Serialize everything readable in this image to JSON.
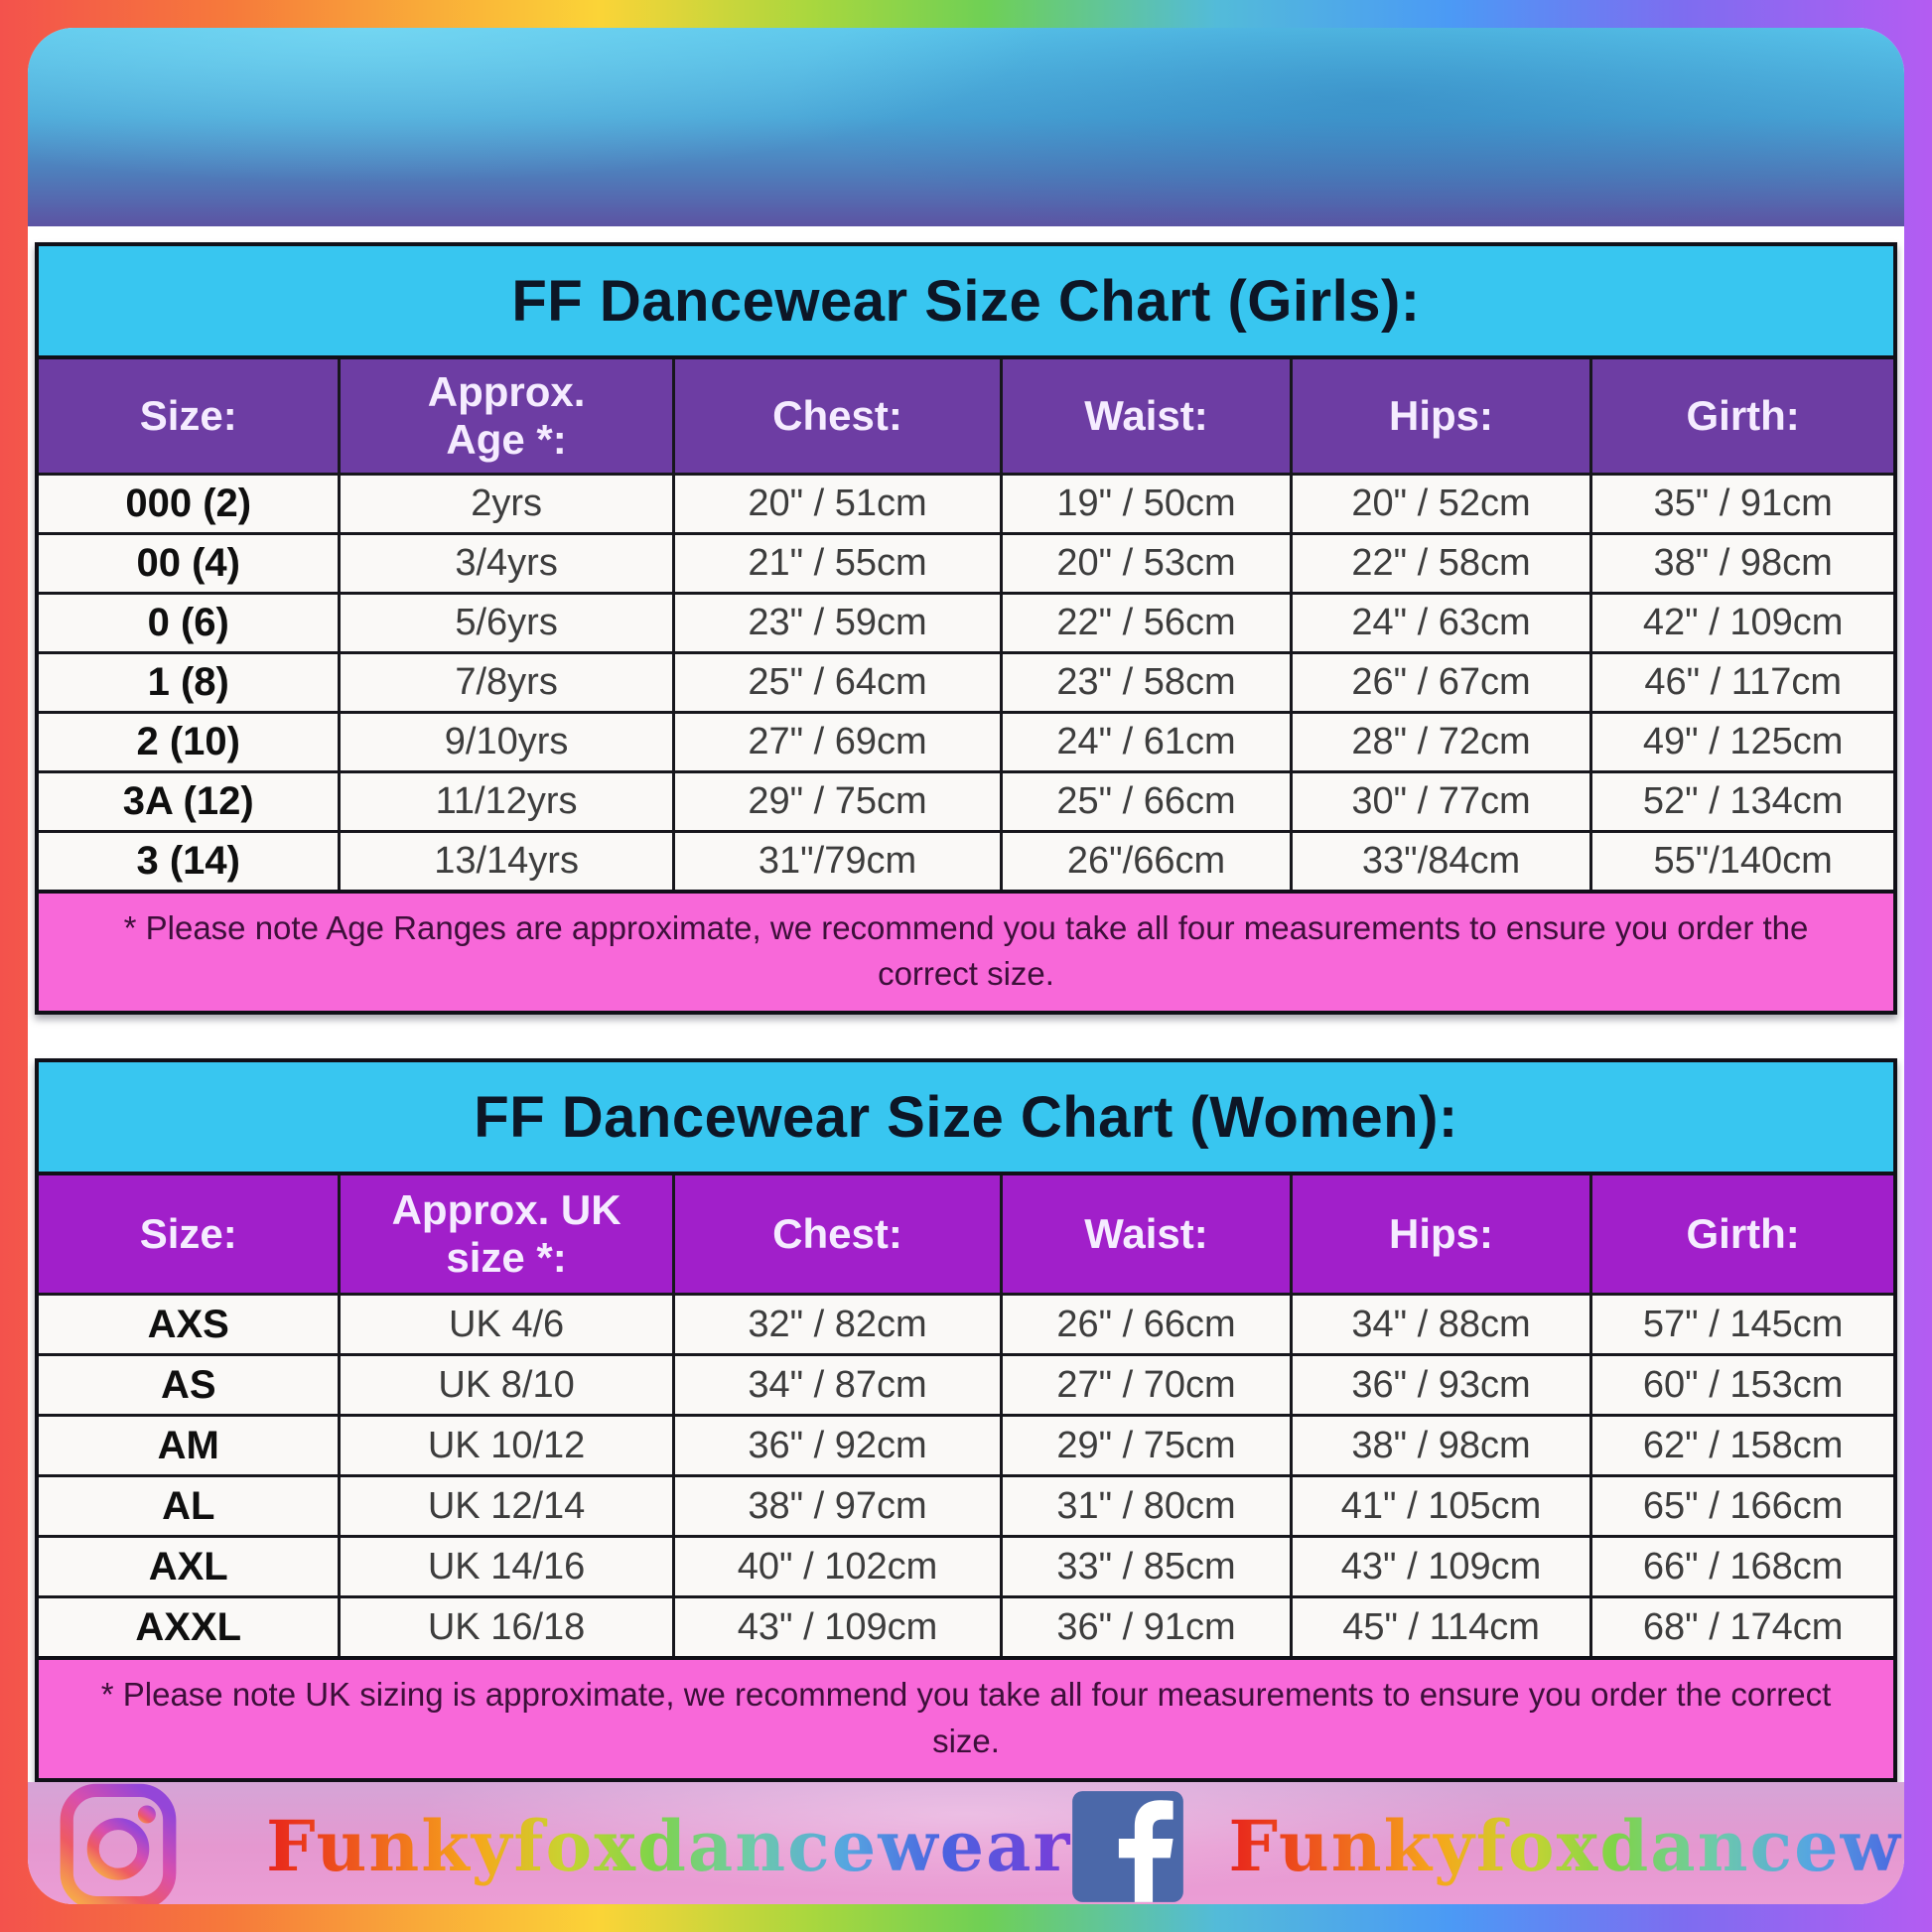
{
  "girls_table": {
    "title": "FF Dancewear Size Chart (Girls):",
    "columns": [
      "Size:",
      "Approx.\nAge *:",
      "Chest:",
      "Waist:",
      "Hips:",
      "Girth:"
    ],
    "rows": [
      [
        "000 (2)",
        "2yrs",
        "20\" / 51cm",
        "19\" / 50cm",
        "20\" / 52cm",
        "35\" / 91cm"
      ],
      [
        "00 (4)",
        "3/4yrs",
        "21\" / 55cm",
        "20\" / 53cm",
        "22\" / 58cm",
        "38\" / 98cm"
      ],
      [
        "0 (6)",
        "5/6yrs",
        "23\" / 59cm",
        "22\" / 56cm",
        "24\" / 63cm",
        "42\" / 109cm"
      ],
      [
        "1 (8)",
        "7/8yrs",
        "25\" / 64cm",
        "23\" / 58cm",
        "26\" / 67cm",
        "46\" / 117cm"
      ],
      [
        "2 (10)",
        "9/10yrs",
        "27\" / 69cm",
        "24\" / 61cm",
        "28\" / 72cm",
        "49\" / 125cm"
      ],
      [
        "3A (12)",
        "11/12yrs",
        "29\" / 75cm",
        "25\" / 66cm",
        "30\" / 77cm",
        "52\" / 134cm"
      ],
      [
        "3 (14)",
        "13/14yrs",
        "31\"/79cm",
        "26\"/66cm",
        "33\"/84cm",
        "55\"/140cm"
      ]
    ],
    "footnote": "* Please note Age Ranges are approximate, we recommend you take all four measurements to ensure you order the correct size."
  },
  "women_table": {
    "title": "FF Dancewear Size Chart (Women):",
    "columns": [
      "Size:",
      "Approx. UK\nsize *:",
      "Chest:",
      "Waist:",
      "Hips:",
      "Girth:"
    ],
    "rows": [
      [
        "AXS",
        "UK 4/6",
        "32\" / 82cm",
        "26\" / 66cm",
        "34\" / 88cm",
        "57\" / 145cm"
      ],
      [
        "AS",
        "UK 8/10",
        "34\" / 87cm",
        "27\" / 70cm",
        "36\" / 93cm",
        "60\" / 153cm"
      ],
      [
        "AM",
        "UK 10/12",
        "36\" / 92cm",
        "29\" / 75cm",
        "38\" / 98cm",
        "62\" / 158cm"
      ],
      [
        "AL",
        "UK 12/14",
        "38\" / 97cm",
        "31\" / 80cm",
        "41\" / 105cm",
        "65\" / 166cm"
      ],
      [
        "AXL",
        "UK 14/16",
        "40\" / 102cm",
        "33\" / 85cm",
        "43\" / 109cm",
        "66\" / 168cm"
      ],
      [
        "AXXL",
        "UK 16/18",
        "43\" / 109cm",
        "36\" / 91cm",
        "45\" / 114cm",
        "68\" / 174cm"
      ]
    ],
    "footnote": "* Please note UK sizing is approximate, we recommend you take all four measurements to ensure you order the correct size."
  },
  "footer": {
    "instagram_icon": "instagram-icon",
    "facebook_icon": "facebook-icon",
    "instagram_handle": "Funkyfoxdancewear",
    "facebook_handle": "Funkyfoxdancewear"
  },
  "colors": {
    "title_bar_cyan": "#38c6f0",
    "girls_header_purple": "#6d3da3",
    "women_header_purple": "#a11fca",
    "footnote_pink": "#f868d9",
    "facebook_blue": "#4b68a9",
    "rainbow_border": [
      "#f3524c",
      "#fbd437",
      "#6fd055",
      "#4b9af5",
      "#b45cf2"
    ]
  }
}
